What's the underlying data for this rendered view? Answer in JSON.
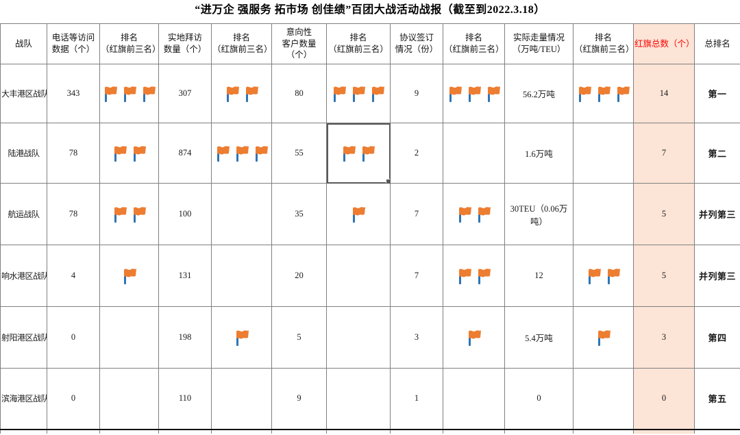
{
  "title": "“进万企 强服务 拓市场 创佳绩”百团大战活动战报（截至到2022.3.18）",
  "colors": {
    "accent_fill": "#FCE4D6",
    "accent_text": "#FF0000",
    "flag_body": "#ED7D31",
    "flag_pole": "#2E75B6",
    "grid_line": "#7F7F7F"
  },
  "table": {
    "headers": [
      {
        "key": "team",
        "label": "战队"
      },
      {
        "key": "phone",
        "label": "电话等访问\n数据（个）"
      },
      {
        "key": "phone_rank",
        "label": "排名\n（红旗前三名）"
      },
      {
        "key": "visit",
        "label": "实地拜访\n数量（个）"
      },
      {
        "key": "visit_rank",
        "label": "排名\n（红旗前三名）"
      },
      {
        "key": "intent",
        "label": "意向性\n客户数量\n（个）"
      },
      {
        "key": "intent_rank",
        "label": "排名\n（红旗前三名）"
      },
      {
        "key": "agreement",
        "label": "协议签订\n情况（份）"
      },
      {
        "key": "agreement_rank",
        "label": "排名\n（红旗前三名）"
      },
      {
        "key": "volume",
        "label": "实际走量情况\n（万吨/TEU）"
      },
      {
        "key": "volume_rank",
        "label": "排名\n（红旗前三名）"
      },
      {
        "key": "flag_total",
        "label": "红旗总数（个）"
      },
      {
        "key": "overall",
        "label": "总排名"
      }
    ],
    "flag_icon": "red-flag-icon",
    "rows": [
      {
        "team": "大丰港区战队",
        "phone": "343",
        "phone_rank": 3,
        "visit": "307",
        "visit_rank": 2,
        "intent": "80",
        "intent_rank": 3,
        "agreement": "9",
        "agreement_rank": 3,
        "volume": "56.2万吨",
        "volume_rank": 3,
        "flag_total": "14",
        "overall": "第一"
      },
      {
        "team": "陆港战队",
        "phone": "78",
        "phone_rank": 2,
        "visit": "874",
        "visit_rank": 3,
        "intent": "55",
        "intent_rank": 2,
        "agreement": "2",
        "agreement_rank": 0,
        "volume": "1.6万吨",
        "volume_rank": 0,
        "flag_total": "7",
        "overall": "第二"
      },
      {
        "team": "航运战队",
        "phone": "78",
        "phone_rank": 2,
        "visit": "100",
        "visit_rank": 0,
        "intent": "35",
        "intent_rank": 1,
        "agreement": "7",
        "agreement_rank": 2,
        "volume": "30TEU（0.06万吨）",
        "volume_rank": 0,
        "flag_total": "5",
        "overall": "并列第三"
      },
      {
        "team": "响水港区战队",
        "phone": "4",
        "phone_rank": 1,
        "visit": "131",
        "visit_rank": 0,
        "intent": "20",
        "intent_rank": 0,
        "agreement": "7",
        "agreement_rank": 2,
        "volume": "12",
        "volume_rank": 2,
        "flag_total": "5",
        "overall": "并列第三"
      },
      {
        "team": "射阳港区战队",
        "phone": "0",
        "phone_rank": 0,
        "visit": "198",
        "visit_rank": 1,
        "intent": "5",
        "intent_rank": 0,
        "agreement": "3",
        "agreement_rank": 1,
        "volume": "5.4万吨",
        "volume_rank": 1,
        "flag_total": "3",
        "overall": "第四"
      },
      {
        "team": "滨海港区战队",
        "phone": "0",
        "phone_rank": 0,
        "visit": "110",
        "visit_rank": 0,
        "intent": "9",
        "intent_rank": 0,
        "agreement": "1",
        "agreement_rank": 0,
        "volume": "0",
        "volume_rank": 0,
        "flag_total": "0",
        "overall": "第五"
      }
    ],
    "selection": {
      "row": 1,
      "col": "intent_rank"
    }
  }
}
